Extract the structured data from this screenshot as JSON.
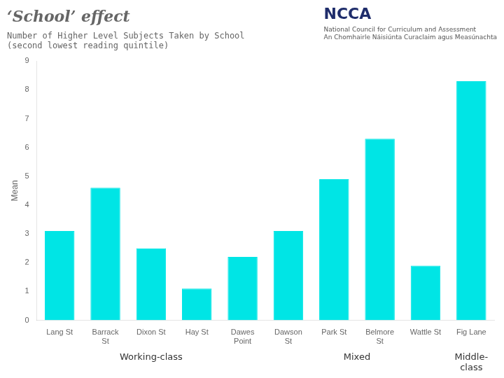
{
  "chart_data": {
    "type": "bar",
    "title": "‘School’ effect",
    "subtitle": [
      "Number of Higher Level Subjects Taken by School",
      "(second lowest reading quintile)"
    ],
    "ylabel": "Mean",
    "categories": [
      "Lang St",
      "Barrack\nSt",
      "Dixon St",
      "Hay St",
      "Dawes\nPoint",
      "Dawson\nSt",
      "Park St",
      "Belmore\nSt",
      "Wattle St",
      "Fig Lane"
    ],
    "values": [
      3.1,
      4.6,
      2.5,
      1.1,
      2.2,
      3.1,
      4.9,
      6.3,
      1.9,
      8.3
    ],
    "color": "#00E5E5",
    "ylim": [
      0,
      9
    ],
    "yticks": [
      0,
      1,
      2,
      3,
      4,
      5,
      6,
      7,
      8,
      9
    ],
    "grid": false,
    "annotations": [
      {
        "text": "Working-class",
        "x": 2.0
      },
      {
        "text": "Mixed",
        "x": 6.5
      },
      {
        "text": "Middle-\nclass",
        "x": 9.0
      },
      {
        "text": "NCCA"
      },
      {
        "text": "National Council for Curriculum and Assessment\nAn Chomhairle Náisiúnta Curaclaim agus Measúnachta"
      }
    ]
  }
}
